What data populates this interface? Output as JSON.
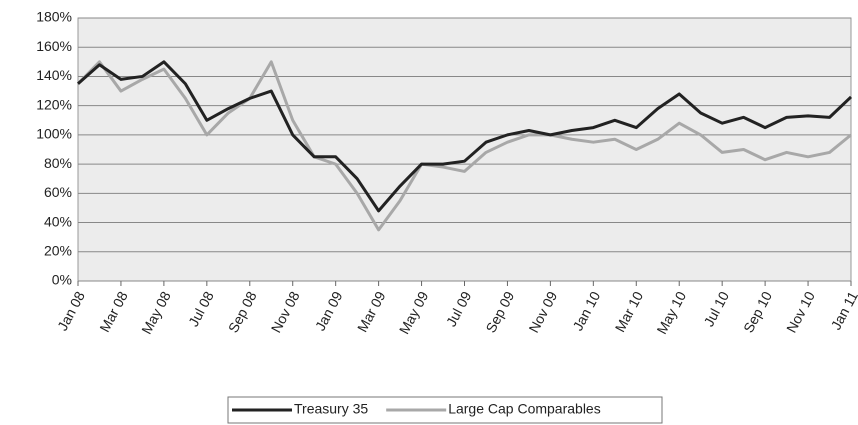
{
  "chart_data": {
    "type": "line",
    "x": [
      "Jan 08",
      null,
      "Mar 08",
      null,
      "May 08",
      null,
      "Jul 08",
      null,
      "Sep 08",
      null,
      "Nov 08",
      null,
      "Jan 09",
      null,
      "Mar 09",
      null,
      "May 09",
      null,
      "Jul 09",
      null,
      "Sep 09",
      null,
      "Nov 09",
      null,
      "Jan 10",
      null,
      "Mar 10",
      null,
      "May 10",
      null,
      "Jul 10",
      null,
      "Sep 10",
      null,
      "Nov 10",
      null,
      "Jan 11"
    ],
    "series": [
      {
        "name": "Treasury 35",
        "color": "#222222",
        "values": [
          135,
          148,
          138,
          140,
          150,
          135,
          110,
          118,
          125,
          130,
          100,
          85,
          85,
          70,
          48,
          65,
          80,
          80,
          82,
          95,
          100,
          103,
          100,
          103,
          105,
          110,
          105,
          118,
          128,
          115,
          108,
          112,
          105,
          112,
          113,
          112,
          126
        ]
      },
      {
        "name": "Large Cap Comparables",
        "color": "#a8a8a8",
        "values": [
          135,
          150,
          130,
          138,
          145,
          125,
          100,
          115,
          125,
          150,
          110,
          85,
          80,
          60,
          35,
          55,
          80,
          78,
          75,
          88,
          95,
          100,
          100,
          97,
          95,
          97,
          90,
          97,
          108,
          100,
          88,
          90,
          83,
          88,
          85,
          88,
          100
        ]
      }
    ],
    "ylim": [
      0,
      180
    ],
    "yticks": [
      {
        "value": 0,
        "label": "0%"
      },
      {
        "value": 20,
        "label": "20%"
      },
      {
        "value": 40,
        "label": "40%"
      },
      {
        "value": 60,
        "label": "60%"
      },
      {
        "value": 80,
        "label": "80%"
      },
      {
        "value": 100,
        "label": "100%"
      },
      {
        "value": 120,
        "label": "120%"
      },
      {
        "value": 140,
        "label": "140%"
      },
      {
        "value": 160,
        "label": "160%"
      },
      {
        "value": 180,
        "label": "180%"
      }
    ],
    "grid": true,
    "legend": "bottom"
  }
}
